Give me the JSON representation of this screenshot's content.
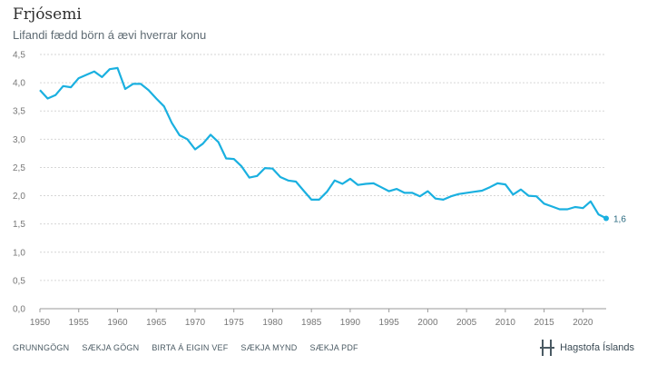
{
  "colors": {
    "line": "#1ab0e0",
    "grid": "#d6d6d6",
    "accent": "#2a6a80"
  },
  "header": {
    "title": "Frjósemi",
    "subtitle": "Lifandi fædd börn á ævi hverrar konu"
  },
  "footer": {
    "links": [
      "GRUNNGÖGN",
      "SÆKJA GÖGN",
      "BIRTA Á EIGIN VEF",
      "SÆKJA MYND",
      "SÆKJA PDF"
    ],
    "brand": "Hagstofa Íslands",
    "brand_icon": "hagstofa-logo-icon"
  },
  "chart_data": {
    "type": "line",
    "title": "Frjósemi",
    "subtitle": "Lifandi fædd börn á ævi hverrar konu",
    "xlabel": "",
    "ylabel": "",
    "xlim": [
      1950,
      2023
    ],
    "ylim": [
      0,
      4.5
    ],
    "xticks": [
      "1950",
      "1955",
      "1960",
      "1965",
      "1970",
      "1975",
      "1980",
      "1985",
      "1990",
      "1995",
      "2000",
      "2005",
      "2010",
      "2015",
      "2020"
    ],
    "yticks": [
      "0,0",
      "0,5",
      "1,0",
      "1,5",
      "2,0",
      "2,5",
      "3,0",
      "3,5",
      "4,0",
      "4,5"
    ],
    "grid": true,
    "end_label": "1,6",
    "series": [
      {
        "x": [
          1950,
          1951,
          1952,
          1953,
          1954,
          1955,
          1956,
          1957,
          1958,
          1959,
          1960,
          1961,
          1962,
          1963,
          1964,
          1965,
          1966,
          1967,
          1968,
          1969,
          1970,
          1971,
          1972,
          1973,
          1974,
          1975,
          1976,
          1977,
          1978,
          1979,
          1980,
          1981,
          1982,
          1983,
          1984,
          1985,
          1986,
          1987,
          1988,
          1989,
          1990,
          1991,
          1992,
          1993,
          1994,
          1995,
          1996,
          1997,
          1998,
          1999,
          2000,
          2001,
          2002,
          2003,
          2004,
          2005,
          2006,
          2007,
          2008,
          2009,
          2010,
          2011,
          2012,
          2013,
          2014,
          2015,
          2016,
          2017,
          2018,
          2019,
          2020,
          2021,
          2022,
          2023
        ],
        "values": [
          3.87,
          3.72,
          3.78,
          3.94,
          3.92,
          4.08,
          4.14,
          4.2,
          4.1,
          4.24,
          4.26,
          3.89,
          3.98,
          3.98,
          3.87,
          3.72,
          3.58,
          3.29,
          3.07,
          3.0,
          2.82,
          2.92,
          3.08,
          2.95,
          2.66,
          2.65,
          2.52,
          2.32,
          2.35,
          2.49,
          2.48,
          2.33,
          2.27,
          2.25,
          2.09,
          1.93,
          1.93,
          2.07,
          2.27,
          2.21,
          2.3,
          2.19,
          2.21,
          2.22,
          2.15,
          2.08,
          2.12,
          2.05,
          2.05,
          1.99,
          2.08,
          1.95,
          1.93,
          1.99,
          2.03,
          2.05,
          2.07,
          2.09,
          2.15,
          2.22,
          2.2,
          2.02,
          2.11,
          2.0,
          1.99,
          1.86,
          1.81,
          1.76,
          1.76,
          1.8,
          1.78,
          1.9,
          1.67,
          1.6
        ]
      }
    ]
  }
}
